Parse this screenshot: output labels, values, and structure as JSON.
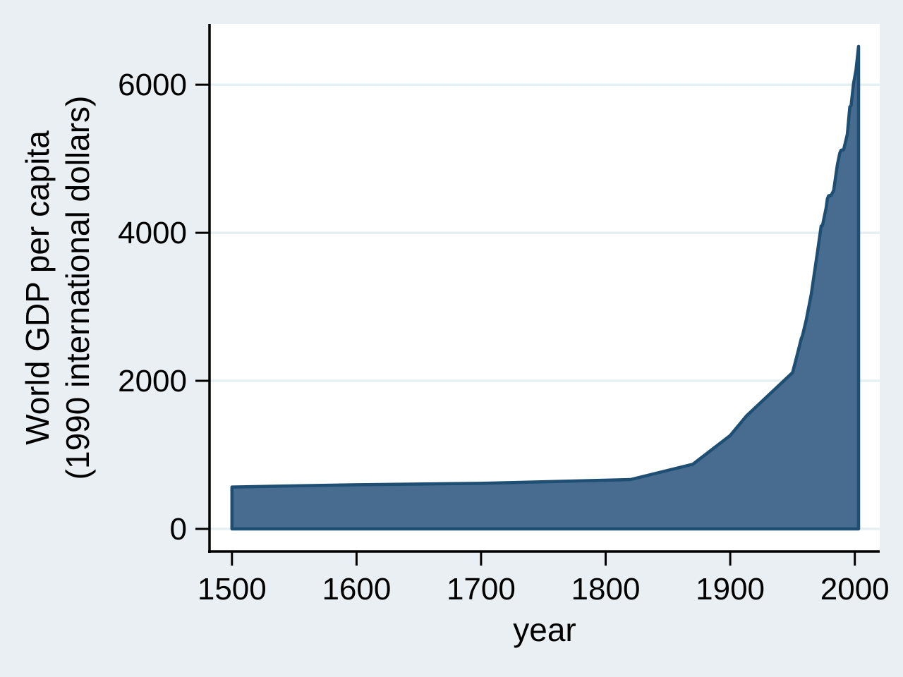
{
  "figure": {
    "background_color": "#e9eff2",
    "plot_background_color": "#ffffff",
    "grid_color": "#e6eff2",
    "axis_color": "#000000",
    "text_color": "#000000"
  },
  "chart_data": {
    "type": "area",
    "title": "",
    "xlabel": "year",
    "ylabel_lines": [
      "World GDP per capita",
      "(1990 international dollars)"
    ],
    "legend": "none",
    "grid": true,
    "x": [
      1500,
      1600,
      1700,
      1820,
      1870,
      1900,
      1913,
      1950,
      1953,
      1957,
      1958,
      1961,
      1965,
      1970,
      1973,
      1974,
      1977,
      1978,
      1979,
      1981,
      1983,
      1986,
      1988,
      1989,
      1991,
      1994,
      1996,
      1997,
      1999,
      2001,
      2003
    ],
    "y": [
      566,
      596,
      615,
      667,
      873,
      1262,
      1526,
      2111,
      2300,
      2570,
      2610,
      2820,
      3166,
      3736,
      4091,
      4095,
      4340,
      4460,
      4500,
      4505,
      4570,
      4920,
      5080,
      5115,
      5120,
      5330,
      5700,
      5715,
      6016,
      6200,
      6516
    ],
    "xticks": [
      1500,
      1600,
      1700,
      1800,
      1900,
      2000
    ],
    "yticks": [
      0,
      2000,
      4000,
      6000
    ],
    "xlim": [
      1482,
      2020
    ],
    "ylim": [
      -305,
      6820
    ],
    "baseline_value": 0,
    "colors": {
      "fill": "#476c8f",
      "stroke": "#1f4e73",
      "grid": "#e6eff2",
      "axis": "#000000",
      "plot_bg": "#ffffff",
      "figure_bg": "#e9eff2",
      "text": "#000000"
    }
  }
}
